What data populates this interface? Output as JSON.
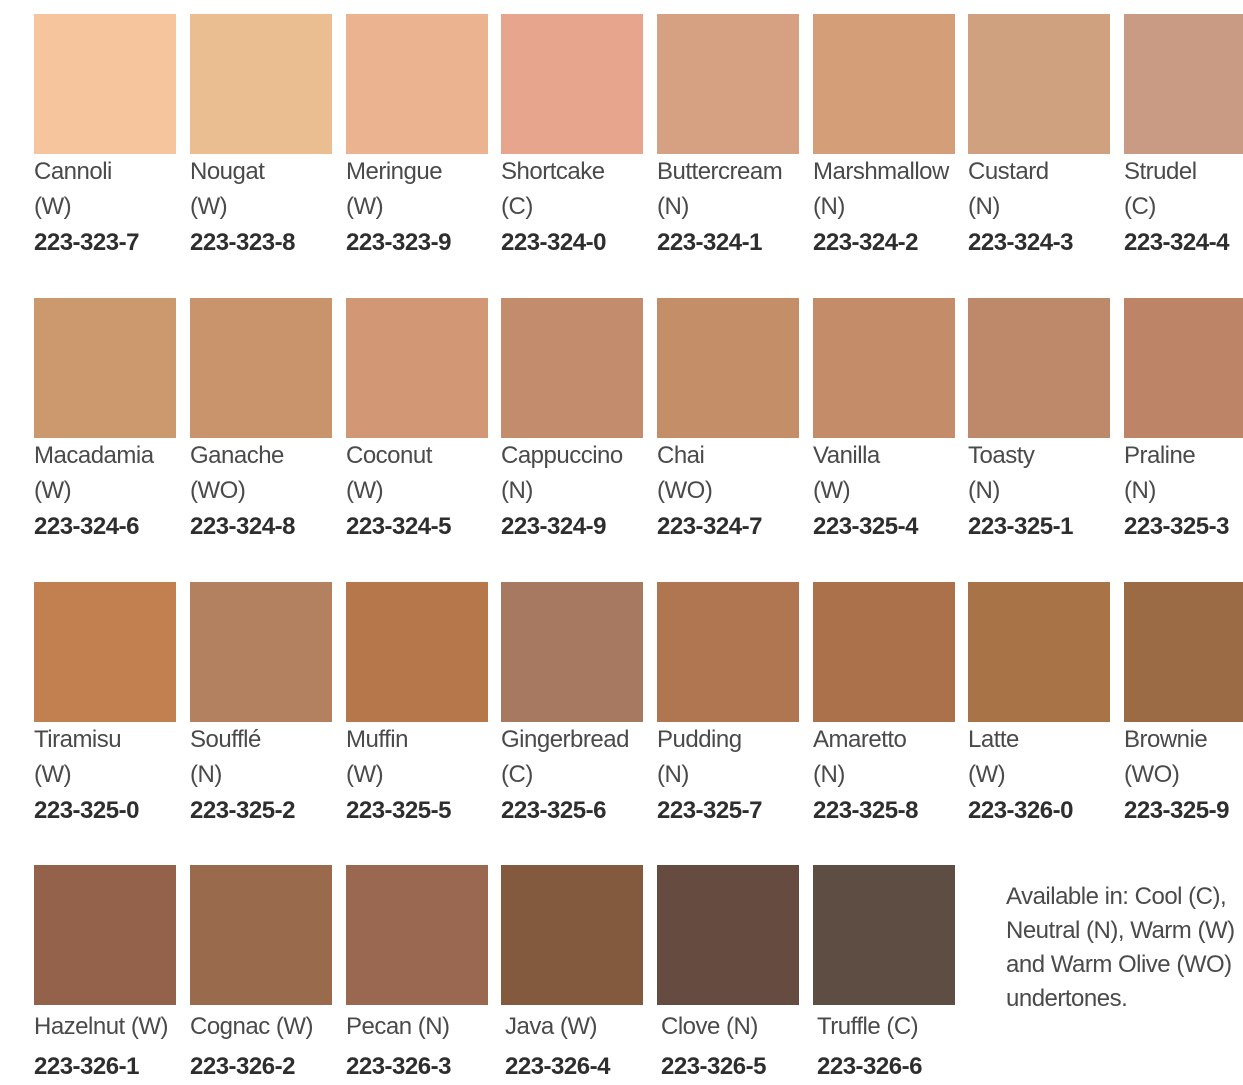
{
  "rows": [
    [
      {
        "name": "Cannoli",
        "tone": "(W)",
        "code": "223-323-7",
        "color": "#f6c59d"
      },
      {
        "name": "Nougat",
        "tone": "(W)",
        "code": "223-323-8",
        "color": "#ebbe91"
      },
      {
        "name": "Meringue",
        "tone": "(W)",
        "code": "223-323-9",
        "color": "#ebb390"
      },
      {
        "name": "Shortcake",
        "tone": "(C)",
        "code": "223-324-0",
        "color": "#e7a58d"
      },
      {
        "name": "Buttercream",
        "tone": "(N)",
        "code": "223-324-1",
        "color": "#d6a183"
      },
      {
        "name": "Marshmallow",
        "tone": "(N)",
        "code": "223-324-2",
        "color": "#d39e78"
      },
      {
        "name": "Custard",
        "tone": "(N)",
        "code": "223-324-3",
        "color": "#d0a17f"
      },
      {
        "name": "Strudel",
        "tone": "(C)",
        "code": "223-324-4",
        "color": "#c99a84"
      }
    ],
    [
      {
        "name": "Macadamia",
        "tone": "(W)",
        "code": "223-324-6",
        "color": "#cc996f"
      },
      {
        "name": "Ganache",
        "tone": "(WO)",
        "code": "223-324-8",
        "color": "#c9946b"
      },
      {
        "name": "Coconut",
        "tone": "(W)",
        "code": "223-324-5",
        "color": "#d29875"
      },
      {
        "name": "Cappuccino",
        "tone": "(N)",
        "code": "223-324-9",
        "color": "#c38c6c"
      },
      {
        "name": "Chai",
        "tone": "(WO)",
        "code": "223-324-7",
        "color": "#c38e68"
      },
      {
        "name": "Vanilla",
        "tone": "(W)",
        "code": "223-325-4",
        "color": "#c48c69"
      },
      {
        "name": "Toasty",
        "tone": "(N)",
        "code": "223-325-1",
        "color": "#be896a"
      },
      {
        "name": "Praline",
        "tone": "(N)",
        "code": "223-325-3",
        "color": "#bd8468"
      }
    ],
    [
      {
        "name": "Tiramisu",
        "tone": "(W)",
        "code": "223-325-0",
        "color": "#c27f4f"
      },
      {
        "name": "Soufflé",
        "tone": "(N)",
        "code": "223-325-2",
        "color": "#b3815f"
      },
      {
        "name": "Muffin",
        "tone": "(W)",
        "code": "223-325-5",
        "color": "#b6784b"
      },
      {
        "name": "Gingerbread",
        "tone": "(C)",
        "code": "223-325-6",
        "color": "#a87961"
      },
      {
        "name": "Pudding",
        "tone": "(N)",
        "code": "223-325-7",
        "color": "#b07651"
      },
      {
        "name": "Amaretto",
        "tone": "(N)",
        "code": "223-325-8",
        "color": "#aa714b"
      },
      {
        "name": "Latte",
        "tone": "(W)",
        "code": "223-326-0",
        "color": "#a87347"
      },
      {
        "name": "Brownie",
        "tone": "(WO)",
        "code": "223-325-9",
        "color": "#9b6b45"
      }
    ],
    [
      {
        "name": "Hazelnut (W)",
        "code": "223-326-1",
        "color": "#94624a"
      },
      {
        "name": "Cognac (W)",
        "code": "223-326-2",
        "color": "#9a6a4d"
      },
      {
        "name": "Pecan (N)",
        "code": "223-326-3",
        "color": "#9a6851"
      },
      {
        "name": "Java (W)",
        "code": "223-326-4",
        "color": "#845a3f"
      },
      {
        "name": "Clove (N)",
        "code": "223-326-5",
        "color": "#654b40"
      },
      {
        "name": "Truffle (C)",
        "code": "223-326-6",
        "color": "#5e4d43"
      }
    ]
  ],
  "note": [
    "Available in: Cool (C),",
    "Neutral (N), Warm (W)",
    "and Warm Olive (WO)",
    "undertones."
  ]
}
